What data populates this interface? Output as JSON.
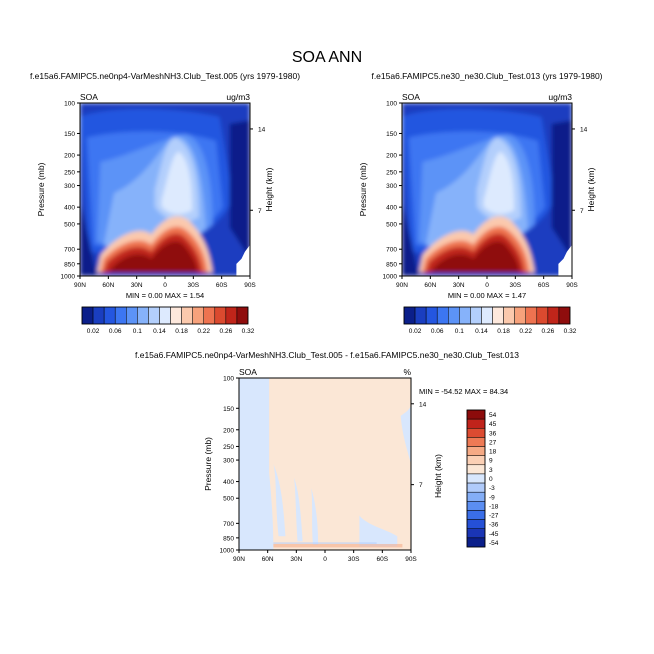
{
  "title": "SOA ANN",
  "colors": {
    "abs_scale": [
      "#0b1f8a",
      "#1a3ec0",
      "#2456e0",
      "#3c76f2",
      "#5c93f7",
      "#86b2fa",
      "#b3cffc",
      "#ddeafe",
      "#fde8dc",
      "#fbc9ad",
      "#f7a27c",
      "#ee7350",
      "#db4a2f",
      "#c0251a",
      "#8f0d0d"
    ],
    "diff_scale": [
      "#0b1f8a",
      "#1a35b5",
      "#2550d6",
      "#3a6ee8",
      "#5b8ef2",
      "#84aef7",
      "#b0cbfb",
      "#d8e7fd",
      "#fbe7d6",
      "#fbd0b5",
      "#f6aa85",
      "#ee7a55",
      "#dc4b31",
      "#c0231b",
      "#8c0b0b"
    ]
  },
  "chart_data": [
    {
      "type": "heatmap",
      "panel": "top-left",
      "title": "f.e15a6.FAMIPC5.ne0np4-VarMeshNH3.Club_Test.005 (yrs 1979-1980)",
      "left_label": "SOA",
      "right_label": "ug/m3",
      "xlabel": "",
      "ylabel": "Pressure (mb)",
      "y2label": "Height (km)",
      "x_ticks": [
        "90N",
        "60N",
        "30N",
        "0",
        "30S",
        "60S",
        "90S"
      ],
      "y_ticks": [
        "100",
        "150",
        "200",
        "250",
        "300",
        "400",
        "500",
        "700",
        "850",
        "1000"
      ],
      "y2_ticks": [
        "14",
        "7"
      ],
      "stats": "MIN =  0.00  MAX =  1.54",
      "min": 0.0,
      "max": 1.54,
      "colorbar_labels": [
        "0.02",
        "0.06",
        "0.1",
        "0.14",
        "0.18",
        "0.22",
        "0.26",
        "0.32"
      ]
    },
    {
      "type": "heatmap",
      "panel": "top-right",
      "title": "f.e15a6.FAMIPC5.ne30_ne30.Club_Test.013 (yrs 1979-1980)",
      "left_label": "SOA",
      "right_label": "ug/m3",
      "xlabel": "",
      "ylabel": "Pressure (mb)",
      "y2label": "Height (km)",
      "x_ticks": [
        "90N",
        "60N",
        "30N",
        "0",
        "30S",
        "60S",
        "90S"
      ],
      "y_ticks": [
        "100",
        "150",
        "200",
        "250",
        "300",
        "400",
        "500",
        "700",
        "850",
        "1000"
      ],
      "y2_ticks": [
        "14",
        "7"
      ],
      "stats": "MIN =  0.00  MAX =  1.47",
      "min": 0.0,
      "max": 1.47,
      "colorbar_labels": [
        "0.02",
        "0.06",
        "0.1",
        "0.14",
        "0.18",
        "0.22",
        "0.26",
        "0.32"
      ]
    },
    {
      "type": "heatmap",
      "panel": "bottom",
      "title": "f.e15a6.FAMIPC5.ne0np4-VarMeshNH3.Club_Test.005 - f.e15a6.FAMIPC5.ne30_ne30.Club_Test.013",
      "left_label": "SOA",
      "right_label": "%",
      "xlabel": "",
      "ylabel": "Pressure (mb)",
      "y2label": "Height (km)",
      "x_ticks": [
        "90N",
        "60N",
        "30N",
        "0",
        "30S",
        "60S",
        "90S"
      ],
      "y_ticks": [
        "100",
        "150",
        "200",
        "250",
        "300",
        "400",
        "500",
        "700",
        "850",
        "1000"
      ],
      "y2_ticks": [
        "14",
        "7"
      ],
      "stats": "MIN = -54.52  MAX =  84.34",
      "min": -54.52,
      "max": 84.34,
      "colorbar_labels": [
        "54",
        "45",
        "36",
        "27",
        "18",
        "9",
        "3",
        "0",
        "-3",
        "-9",
        "-18",
        "-27",
        "-36",
        "-45",
        "-54"
      ]
    }
  ]
}
